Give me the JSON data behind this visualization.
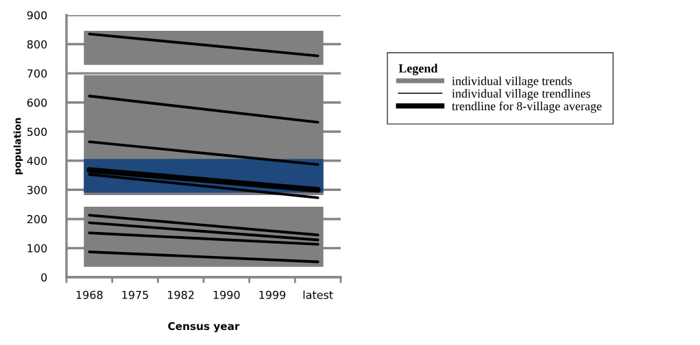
{
  "chart_data": {
    "type": "line",
    "xlabel": "Census year",
    "ylabel": "population",
    "legend_title": "Legend",
    "categories": [
      "1968",
      "1975",
      "1982",
      "1990",
      "1999",
      "latest"
    ],
    "ylim": [
      0,
      900
    ],
    "yticks": [
      0,
      100,
      200,
      300,
      400,
      500,
      600,
      700,
      800,
      900
    ],
    "grid": "y",
    "legend": "right",
    "marker": "none",
    "line_style": "solid",
    "bands": [
      {
        "axis": "y",
        "from": 729,
        "to": 846,
        "label": "individual village trends",
        "color": "#808080"
      },
      {
        "axis": "y",
        "from": 282,
        "to": 694,
        "color": "#808080"
      },
      {
        "axis": "y",
        "from": 36,
        "to": 242,
        "color": "#808080"
      },
      {
        "axis": "y",
        "from": 290,
        "to": 406,
        "color": "#1f497d"
      }
    ],
    "series": [
      {
        "name": "individual village trendlines",
        "color": "#000000",
        "values": [
          835,
          null,
          null,
          null,
          null,
          760
        ]
      },
      {
        "color": "#000000",
        "values": [
          622,
          null,
          null,
          null,
          null,
          532
        ]
      },
      {
        "color": "#000000",
        "values": [
          465,
          null,
          null,
          null,
          null,
          387
        ]
      },
      {
        "color": "#000000",
        "values": [
          353,
          null,
          null,
          null,
          null,
          273
        ]
      },
      {
        "color": "#000000",
        "values": [
          213,
          null,
          null,
          null,
          null,
          145
        ]
      },
      {
        "color": "#000000",
        "values": [
          187,
          null,
          null,
          null,
          null,
          128
        ]
      },
      {
        "color": "#000000",
        "values": [
          152,
          null,
          null,
          null,
          null,
          113
        ]
      },
      {
        "color": "#000000",
        "values": [
          87,
          null,
          null,
          null,
          null,
          53
        ]
      },
      {
        "name": "trendline for 8-village average",
        "color": "#000000",
        "values": [
          368,
          null,
          null,
          null,
          null,
          300
        ]
      }
    ]
  }
}
